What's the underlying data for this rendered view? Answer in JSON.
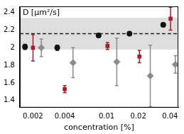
{
  "chart_data": {
    "type": "scatter",
    "title": "D [µm²/s]",
    "x_label": "concentration [%]",
    "log": "x",
    "grid": false,
    "xlim": [
      0.0015,
      0.048
    ],
    "xticks": [
      0.002,
      0.004,
      0.01,
      0.02,
      0.04
    ],
    "ylim": [
      1.32,
      2.47
    ],
    "yticks": [
      1.4,
      1.6,
      1.8,
      2,
      2.2,
      2.4
    ],
    "band": [
      1.98,
      2.34
    ],
    "reference_line": 2.16,
    "series": [
      {
        "color": "#111111",
        "marker": "circle",
        "x": [
          0.00168,
          0.0034,
          0.0084,
          0.0165,
          0.0345
        ],
        "values": [
          2.01,
          2.0,
          2.14,
          2.16,
          2.26
        ],
        "errors": [
          0.03,
          0.03,
          0.02,
          0.02,
          0.02
        ]
      },
      {
        "color": "#a3202e",
        "marker": "square",
        "x": [
          0.002,
          0.004,
          0.0102,
          0.0205,
          0.0405
        ],
        "values": [
          2.0,
          1.53,
          2.02,
          1.9,
          2.33
        ],
        "errors": [
          0.15,
          0.04,
          0.04,
          0.07,
          0.13
        ]
      },
      {
        "color": "#8c8c8c",
        "marker": "diamond",
        "x": [
          0.0024,
          0.0048,
          0.0125,
          0.026,
          0.045
        ],
        "values": [
          2.0,
          1.83,
          1.84,
          1.68,
          1.81
        ],
        "errors": [
          0.1,
          0.17,
          0.27,
          0.35,
          0.1
        ]
      }
    ]
  }
}
